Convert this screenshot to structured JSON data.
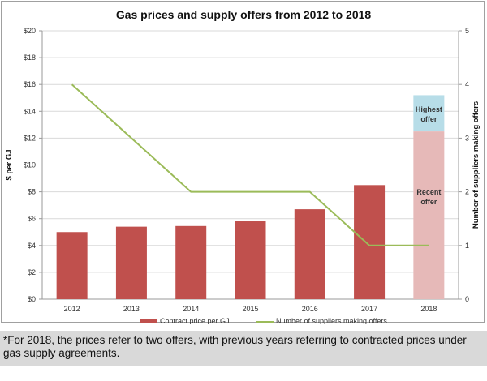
{
  "chart_data": {
    "type": "bar",
    "title": "Gas prices and supply offers from 2012 to 2018",
    "categories": [
      "2012",
      "2013",
      "2014",
      "2015",
      "2016",
      "2017",
      "2018"
    ],
    "ylabel": "$ per GJ",
    "y2label": "Number of suppliers making offers",
    "ylim": [
      0,
      20
    ],
    "y2lim": [
      0,
      5
    ],
    "yticks": [
      "$0",
      "$2",
      "$4",
      "$6",
      "$8",
      "$10",
      "$12",
      "$14",
      "$16",
      "$18",
      "$20"
    ],
    "y2ticks": [
      "0",
      "1",
      "2",
      "3",
      "4",
      "5"
    ],
    "grid": true,
    "legend": "bottom",
    "series": [
      {
        "name": "Contract price per GJ",
        "type": "bar",
        "color": "#c0504d",
        "values": [
          5.0,
          5.4,
          5.45,
          5.8,
          6.7,
          8.5,
          null
        ]
      },
      {
        "name": "Number of suppliers making offers",
        "type": "line",
        "axis": "right",
        "color": "#9bbb59",
        "values": [
          4,
          3,
          2,
          2,
          2,
          1,
          1
        ]
      }
    ],
    "offers_2018": [
      {
        "label": "Recent offer",
        "value": 12.5,
        "color": "#e6b9b8"
      },
      {
        "label": "Highest offer",
        "value": 15.2,
        "color": "#b7dde8"
      }
    ]
  },
  "footnote": "*For 2018, the prices refer to two offers, with previous years referring to contracted prices under gas supply agreements."
}
